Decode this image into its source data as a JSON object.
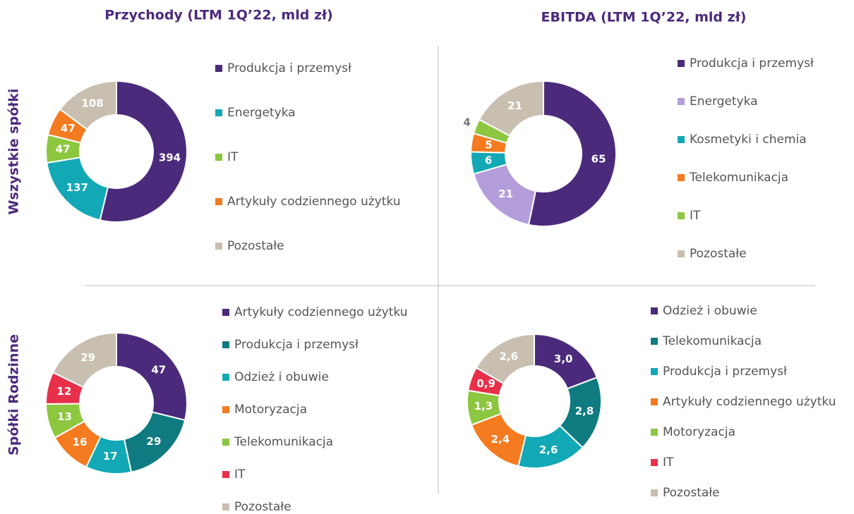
{
  "header": {
    "columns": [
      "Przychody (LTM 1Q’22, mld zł)",
      "EBITDA (LTM 1Q’22, mld zł)"
    ],
    "rows": [
      "Wszystkie spółki",
      "Spółki Rodzinne"
    ]
  },
  "chart_data": [
    {
      "type": "donut",
      "categories": [
        "Produkcja i przemysł",
        "Energetyka",
        "IT",
        "Artykuły codziennego użytku",
        "Pozostałe"
      ],
      "values": [
        394,
        137,
        47,
        47,
        108
      ],
      "colors": [
        "#4b2a7b",
        "#12a8b5",
        "#8dc63f",
        "#f47b20",
        "#c9bfb0"
      ]
    },
    {
      "type": "donut",
      "categories": [
        "Produkcja i przemysł",
        "Energetyka",
        "Kosmetyki i chemia",
        "Telekomunikacja",
        "IT",
        "Pozostałe"
      ],
      "values": [
        65,
        21,
        6,
        5,
        4,
        21
      ],
      "colors": [
        "#4b2a7b",
        "#b39ddb",
        "#12a8b5",
        "#f47b20",
        "#8dc63f",
        "#c9bfb0"
      ]
    },
    {
      "type": "donut",
      "categories": [
        "Artykuły codziennego użytku",
        "Produkcja i przemysł",
        "Odzież i obuwie",
        "Motoryzacja",
        "Telekomunikacja",
        "IT",
        "Pozostałe"
      ],
      "values": [
        47,
        29,
        17,
        16,
        13,
        12,
        29
      ],
      "colors": [
        "#4b2a7b",
        "#0f7b80",
        "#12a8b5",
        "#f47b20",
        "#8dc63f",
        "#e8304a",
        "#c9bfb0"
      ]
    },
    {
      "type": "donut",
      "categories": [
        "Odzież i obuwie",
        "Telekomunikacja",
        "Produkcja i przemysł",
        "Artykuły codziennego użytku",
        "Motoryzacja",
        "IT",
        "Pozostałe"
      ],
      "values": [
        3.0,
        2.8,
        2.6,
        2.4,
        1.3,
        0.9,
        2.6
      ],
      "value_labels": [
        "3,0",
        "2,8",
        "2,6",
        "2,4",
        "1,3",
        "0,9",
        "2,6"
      ],
      "colors": [
        "#4b2a7b",
        "#0f7b80",
        "#12a8b5",
        "#f47b20",
        "#8dc63f",
        "#e8304a",
        "#c9bfb0"
      ]
    }
  ]
}
